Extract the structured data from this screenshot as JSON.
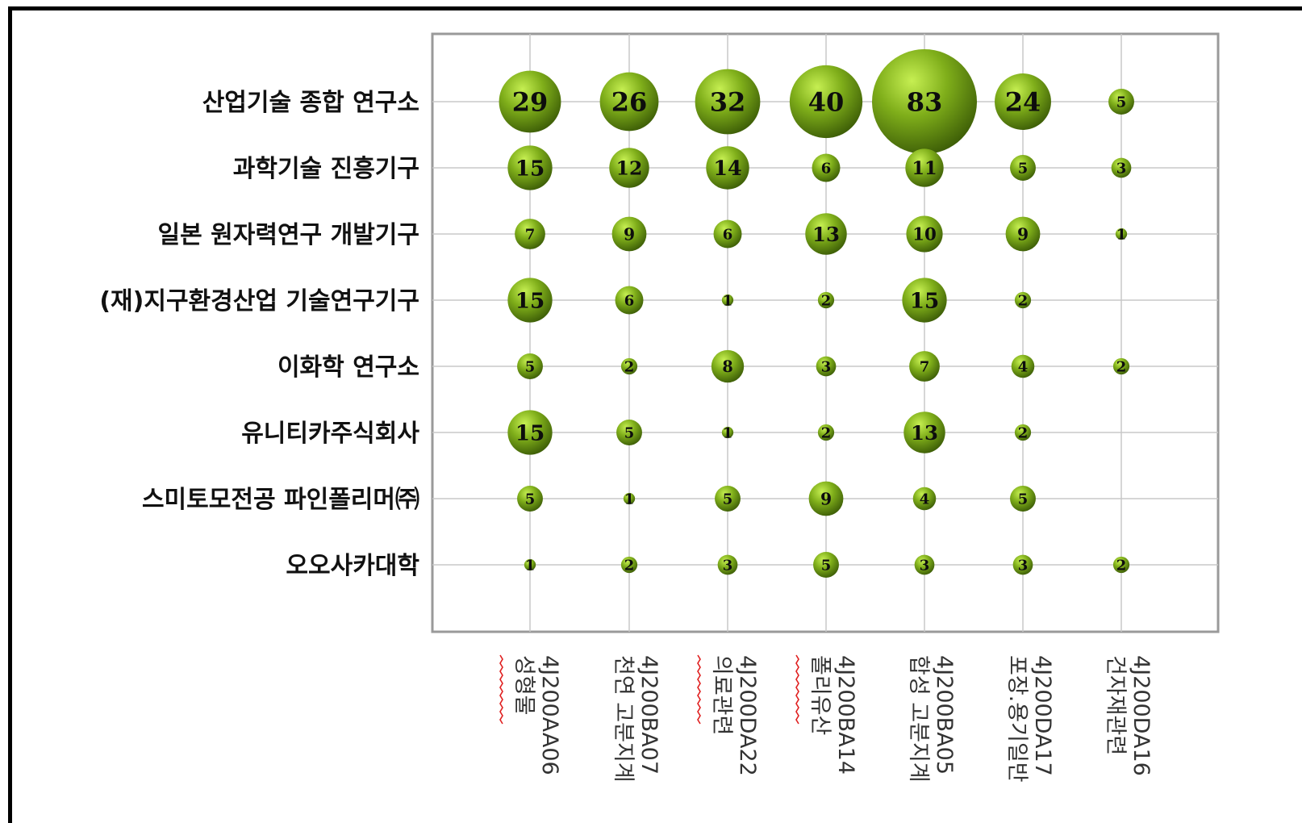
{
  "chart_data": {
    "type": "bubble",
    "rows": [
      "산업기술 종합 연구소",
      "과학기술 진흥기구",
      "일본 원자력연구 개발기구",
      "(재)지구환경산업 기술연구기구",
      "이화학 연구소",
      "유니티카주식회사",
      "스미토모전공 파인폴리머㈜",
      "오오사카대학"
    ],
    "columns": [
      {
        "code": "4J200AA06",
        "name": "성형물"
      },
      {
        "code": "4J200BA07",
        "name": "천연 고분지계"
      },
      {
        "code": "4J200DA22",
        "name": "의료관련"
      },
      {
        "code": "4J200BA14",
        "name": "폴리유산"
      },
      {
        "code": "4J200BA05",
        "name": "합성 고분지계"
      },
      {
        "code": "4J200DA17",
        "name": "포장.용기일반"
      },
      {
        "code": "4J200DA16",
        "name": "건자재관련"
      }
    ],
    "values": [
      [
        29,
        26,
        32,
        40,
        83,
        24,
        5
      ],
      [
        15,
        12,
        14,
        6,
        11,
        5,
        3
      ],
      [
        7,
        9,
        6,
        13,
        10,
        9,
        1
      ],
      [
        15,
        6,
        1,
        2,
        15,
        2,
        null
      ],
      [
        5,
        2,
        8,
        3,
        7,
        4,
        2
      ],
      [
        15,
        5,
        1,
        2,
        13,
        2,
        null
      ],
      [
        5,
        1,
        5,
        9,
        4,
        5,
        null
      ],
      [
        1,
        2,
        3,
        5,
        3,
        3,
        2
      ]
    ],
    "grid": true,
    "colors": {
      "bubble_light": "#c6ef52",
      "bubble_mid": "#7fae1a",
      "bubble_dark": "#3a5a06",
      "frame": "#9a9a9a",
      "grid": "#c8c8c8",
      "squiggle": "#e02020"
    }
  }
}
